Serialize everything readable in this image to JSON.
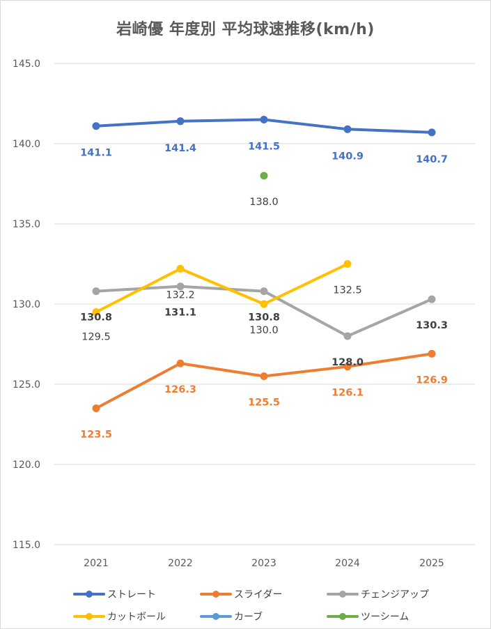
{
  "chart_data": {
    "type": "line",
    "title": "岩崎優 年度別 平均球速推移(km/h)",
    "categories": [
      "2021",
      "2022",
      "2023",
      "2024",
      "2025"
    ],
    "ylim": [
      115.0,
      145.0
    ],
    "yticks": [
      "145.0",
      "140.0",
      "135.0",
      "130.0",
      "125.0",
      "120.0",
      "115.0"
    ],
    "grid": "horizontal",
    "legend_position": "bottom",
    "series": [
      {
        "name": "ストレート",
        "color": "#4472C4",
        "values": [
          141.1,
          141.4,
          141.5,
          140.9,
          140.7
        ],
        "labels": [
          "141.1",
          "141.4",
          "141.5",
          "140.9",
          "140.7"
        ],
        "label_color": "#4472C4",
        "label_bold": true
      },
      {
        "name": "スライダー",
        "color": "#ED7D31",
        "values": [
          123.5,
          126.3,
          125.5,
          126.1,
          126.9
        ],
        "labels": [
          "123.5",
          "126.3",
          "125.5",
          "126.1",
          "126.9"
        ],
        "label_color": "#ED7D31",
        "label_bold": true
      },
      {
        "name": "チェンジアップ",
        "color": "#A5A5A5",
        "values": [
          130.8,
          131.1,
          130.8,
          128.0,
          130.3
        ],
        "labels": [
          "130.8",
          "131.1",
          "130.8",
          "128.0",
          "130.3"
        ],
        "label_color": "#404040",
        "label_bold": true
      },
      {
        "name": "カットボール",
        "color": "#FFC000",
        "values": [
          129.5,
          132.2,
          130.0,
          132.5,
          null
        ],
        "labels": [
          "129.5",
          "132.2",
          "130.0",
          "132.5",
          null
        ],
        "label_color": "#404040",
        "label_bold": false
      },
      {
        "name": "カーブ",
        "color": "#5B9BD5",
        "values": [
          null,
          null,
          null,
          null,
          null
        ],
        "labels": [
          null,
          null,
          null,
          null,
          null
        ],
        "label_color": "#5B9BD5",
        "label_bold": false
      },
      {
        "name": "ツーシーム",
        "color": "#70AD47",
        "values": [
          null,
          null,
          138.0,
          null,
          null
        ],
        "labels": [
          null,
          null,
          "138.0",
          null,
          null
        ],
        "label_color": "#404040",
        "label_bold": false
      }
    ]
  }
}
